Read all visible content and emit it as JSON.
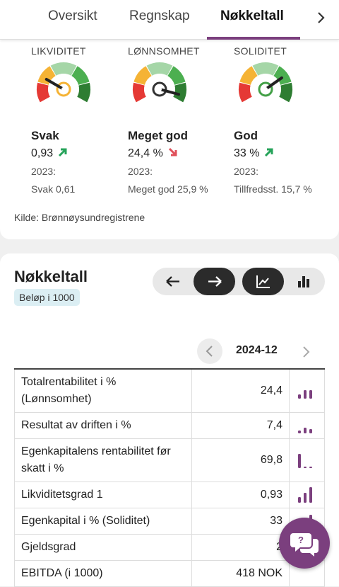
{
  "tabs": {
    "items": [
      "Oversikt",
      "Regnskap",
      "Nøkkeltall"
    ],
    "active": "Nøkkeltall"
  },
  "gauges": [
    {
      "heading": "LIKVIDITET",
      "rating": "Svak",
      "value": "0,93",
      "previous_label": "2023:",
      "previous": "Svak 0,61"
    },
    {
      "heading": "LØNNSOMHET",
      "rating": "Meget god",
      "value": "24,4 %",
      "previous_label": "2023:",
      "previous": "Meget god 25,9 %"
    },
    {
      "heading": "SOLIDITET",
      "rating": "God",
      "value": "33 %",
      "previous_label": "2023:",
      "previous": "Tillfredsst. 15,7 %"
    }
  ],
  "source": "Kilde: Brønnøysundregistrene",
  "section": {
    "title": "Nøkkeltall",
    "badge": "Beløp i 1000"
  },
  "table": {
    "period": "2024-12",
    "rows": [
      [
        "Totalrentabilitet i % (Lønnsomhet)",
        "24,4"
      ],
      [
        "Resultat av driften i %",
        "7,4"
      ],
      [
        "Egenkapitalens rentabilitet før skatt i %",
        "69,8"
      ],
      [
        "Likviditetsgrad 1",
        "0,93"
      ],
      [
        "Egenkapital i % (Soliditet)",
        "33"
      ],
      [
        "Gjeldsgrad",
        "2"
      ],
      [
        "EBITDA (i 1000)",
        "418 NOK"
      ]
    ]
  }
}
